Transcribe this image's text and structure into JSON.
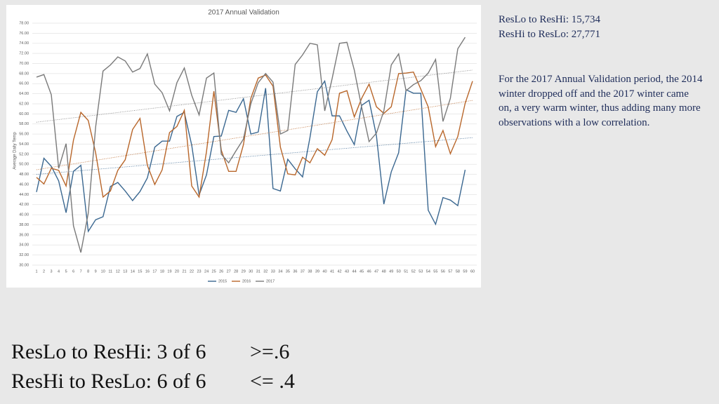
{
  "chart_data": {
    "type": "line",
    "title": "2017 Annual Validation",
    "y_label": "Average Daily Temp",
    "categories": [
      1,
      2,
      3,
      4,
      5,
      6,
      7,
      8,
      9,
      10,
      11,
      12,
      13,
      14,
      15,
      16,
      17,
      18,
      19,
      20,
      21,
      22,
      23,
      24,
      25,
      26,
      27,
      28,
      29,
      30,
      31,
      32,
      33,
      34,
      35,
      36,
      37,
      38,
      39,
      40,
      41,
      42,
      43,
      44,
      45,
      46,
      47,
      48,
      49,
      50,
      51,
      52,
      53,
      54,
      55,
      56,
      57,
      58,
      59,
      60
    ],
    "ylim": [
      30,
      78
    ],
    "yticks": [
      {
        "value": 30,
        "label": "30.00"
      },
      {
        "value": 32,
        "label": "32.00"
      },
      {
        "value": 34,
        "label": "34.00"
      },
      {
        "value": 36,
        "label": "36.00"
      },
      {
        "value": 38,
        "label": "38.00"
      },
      {
        "value": 40,
        "label": "40.00"
      },
      {
        "value": 42,
        "label": "42.00"
      },
      {
        "value": 44,
        "label": "44.00"
      },
      {
        "value": 46,
        "label": "46.00"
      },
      {
        "value": 48,
        "label": "48.00"
      },
      {
        "value": 50,
        "label": "50.00"
      },
      {
        "value": 52,
        "label": "52.00"
      },
      {
        "value": 54,
        "label": "54.00"
      },
      {
        "value": 56,
        "label": "56.00"
      },
      {
        "value": 58,
        "label": "58.00"
      },
      {
        "value": 60,
        "label": "60.00"
      },
      {
        "value": 62,
        "label": "62.00"
      },
      {
        "value": 64,
        "label": "64.00"
      },
      {
        "value": 66,
        "label": "66.00"
      },
      {
        "value": 68,
        "label": "68.00"
      },
      {
        "value": 70,
        "label": "70.00"
      },
      {
        "value": 72,
        "label": "72.00"
      },
      {
        "value": 74,
        "label": "74.00"
      },
      {
        "value": 76,
        "label": "76.00"
      },
      {
        "value": 78,
        "label": "78.00"
      }
    ],
    "grid": true,
    "trendline": true,
    "legend": "bottom",
    "series": [
      {
        "name": "2015",
        "color": "#3a6790",
        "values": [
          44.5,
          51.2,
          49.6,
          46.7,
          40.4,
          48.6,
          49.8,
          36.7,
          39.0,
          39.6,
          45.6,
          46.4,
          44.7,
          42.8,
          44.6,
          47.3,
          53.4,
          54.6,
          54.6,
          59.5,
          60.3,
          53.8,
          43.9,
          47.9,
          55.5,
          55.6,
          60.7,
          60.3,
          63.0,
          56.0,
          56.4,
          65.1,
          45.2,
          44.7,
          51.0,
          49.1,
          47.5,
          55.3,
          64.4,
          66.5,
          59.6,
          59.6,
          56.6,
          53.9,
          61.7,
          62.7,
          55.6,
          42.1,
          48.5,
          52.3,
          64.8,
          64.1,
          64.1,
          40.9,
          38.1,
          43.4,
          42.9,
          41.8,
          48.9,
          null
        ]
      },
      {
        "name": "2016",
        "color": "#b8662a",
        "values": [
          47.4,
          46.1,
          49.2,
          48.8,
          45.7,
          54.8,
          60.3,
          58.7,
          52.3,
          43.5,
          44.7,
          48.8,
          50.9,
          56.9,
          59.1,
          49.8,
          46.0,
          48.9,
          56.3,
          57.5,
          60.7,
          45.7,
          43.5,
          52.5,
          64.5,
          52.8,
          48.6,
          48.6,
          53.9,
          63.1,
          67.1,
          67.7,
          65.5,
          53.4,
          48.1,
          47.9,
          51.4,
          50.3,
          53.1,
          51.8,
          54.9,
          64.1,
          64.6,
          59.4,
          63.1,
          65.9,
          61.4,
          60.1,
          61.4,
          68.0,
          68.1,
          68.3,
          64.9,
          61.4,
          53.5,
          56.7,
          52.1,
          55.5,
          62.1,
          66.5
        ]
      },
      {
        "name": "2017",
        "color": "#7a7a7a",
        "values": [
          67.3,
          67.8,
          63.8,
          49.2,
          54.1,
          37.8,
          32.5,
          40.3,
          57.4,
          68.5,
          69.7,
          71.3,
          70.5,
          68.3,
          69.0,
          71.9,
          65.9,
          64.2,
          60.6,
          66.2,
          69.1,
          63.7,
          59.8,
          67.1,
          68.1,
          52.0,
          50.3,
          52.7,
          55.0,
          62.0,
          66.2,
          68.0,
          66.3,
          56.0,
          56.7,
          69.8,
          71.7,
          74.0,
          73.7,
          60.6,
          67.0,
          74.0,
          74.2,
          68.7,
          61.3,
          54.5,
          56.2,
          60.6,
          69.7,
          71.9,
          64.6,
          65.8,
          66.6,
          68.1,
          70.8,
          58.5,
          63.1,
          72.9,
          75.2,
          null
        ]
      }
    ]
  },
  "notes": {
    "reslo_to_reshi": "ResLo to ResHi: 15,734",
    "reshi_to_reslo": "ResHi to ResLo: 27,771",
    "paragraph": "For the 2017 Annual Validation period, the 2014 winter dropped off and the 2017 winter came on, a very warm winter, thus adding many more observations with a low correlation."
  },
  "summary": {
    "row1": "ResLo to ResHi: 3 of 6",
    "row1_threshold": ">=.6",
    "row2": "ResHi to ResLo: 6 of 6",
    "row2_threshold": "<= .4"
  }
}
